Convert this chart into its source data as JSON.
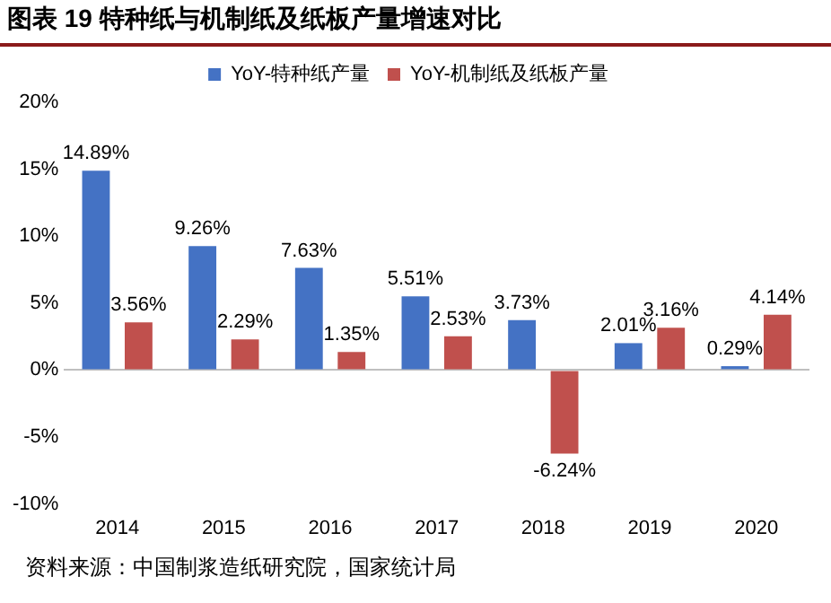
{
  "chart_data": {
    "type": "bar",
    "title": "图表 19  特种纸与机制纸及纸板产量增速对比",
    "categories": [
      "2014",
      "2015",
      "2016",
      "2017",
      "2018",
      "2019",
      "2020"
    ],
    "series": [
      {
        "name": "YoY-特种纸产量",
        "color": "#4472c4",
        "values": [
          14.89,
          9.26,
          7.63,
          5.51,
          3.73,
          2.01,
          0.29
        ],
        "value_labels": [
          "14.89%",
          "9.26%",
          "7.63%",
          "5.51%",
          "3.73%",
          "2.01%",
          "0.29%"
        ]
      },
      {
        "name": "YoY-机制纸及纸板产量",
        "color": "#c0504d",
        "values": [
          3.56,
          2.29,
          1.35,
          2.53,
          -6.24,
          3.16,
          4.14
        ],
        "value_labels": [
          "3.56%",
          "2.29%",
          "1.35%",
          "2.53%",
          "-6.24%",
          "3.16%",
          "4.14%"
        ]
      }
    ],
    "ylim": [
      -10,
      20
    ],
    "yticks": [
      {
        "value": -10,
        "label": "-10%"
      },
      {
        "value": -5,
        "label": "-5%"
      },
      {
        "value": 0,
        "label": "0%"
      },
      {
        "value": 5,
        "label": "5%"
      },
      {
        "value": 10,
        "label": "10%"
      },
      {
        "value": 15,
        "label": "15%"
      },
      {
        "value": 20,
        "label": "20%"
      }
    ],
    "legend": "top",
    "annotations": [
      "资料来源：中国制浆造纸研究院，国家统计局"
    ]
  }
}
